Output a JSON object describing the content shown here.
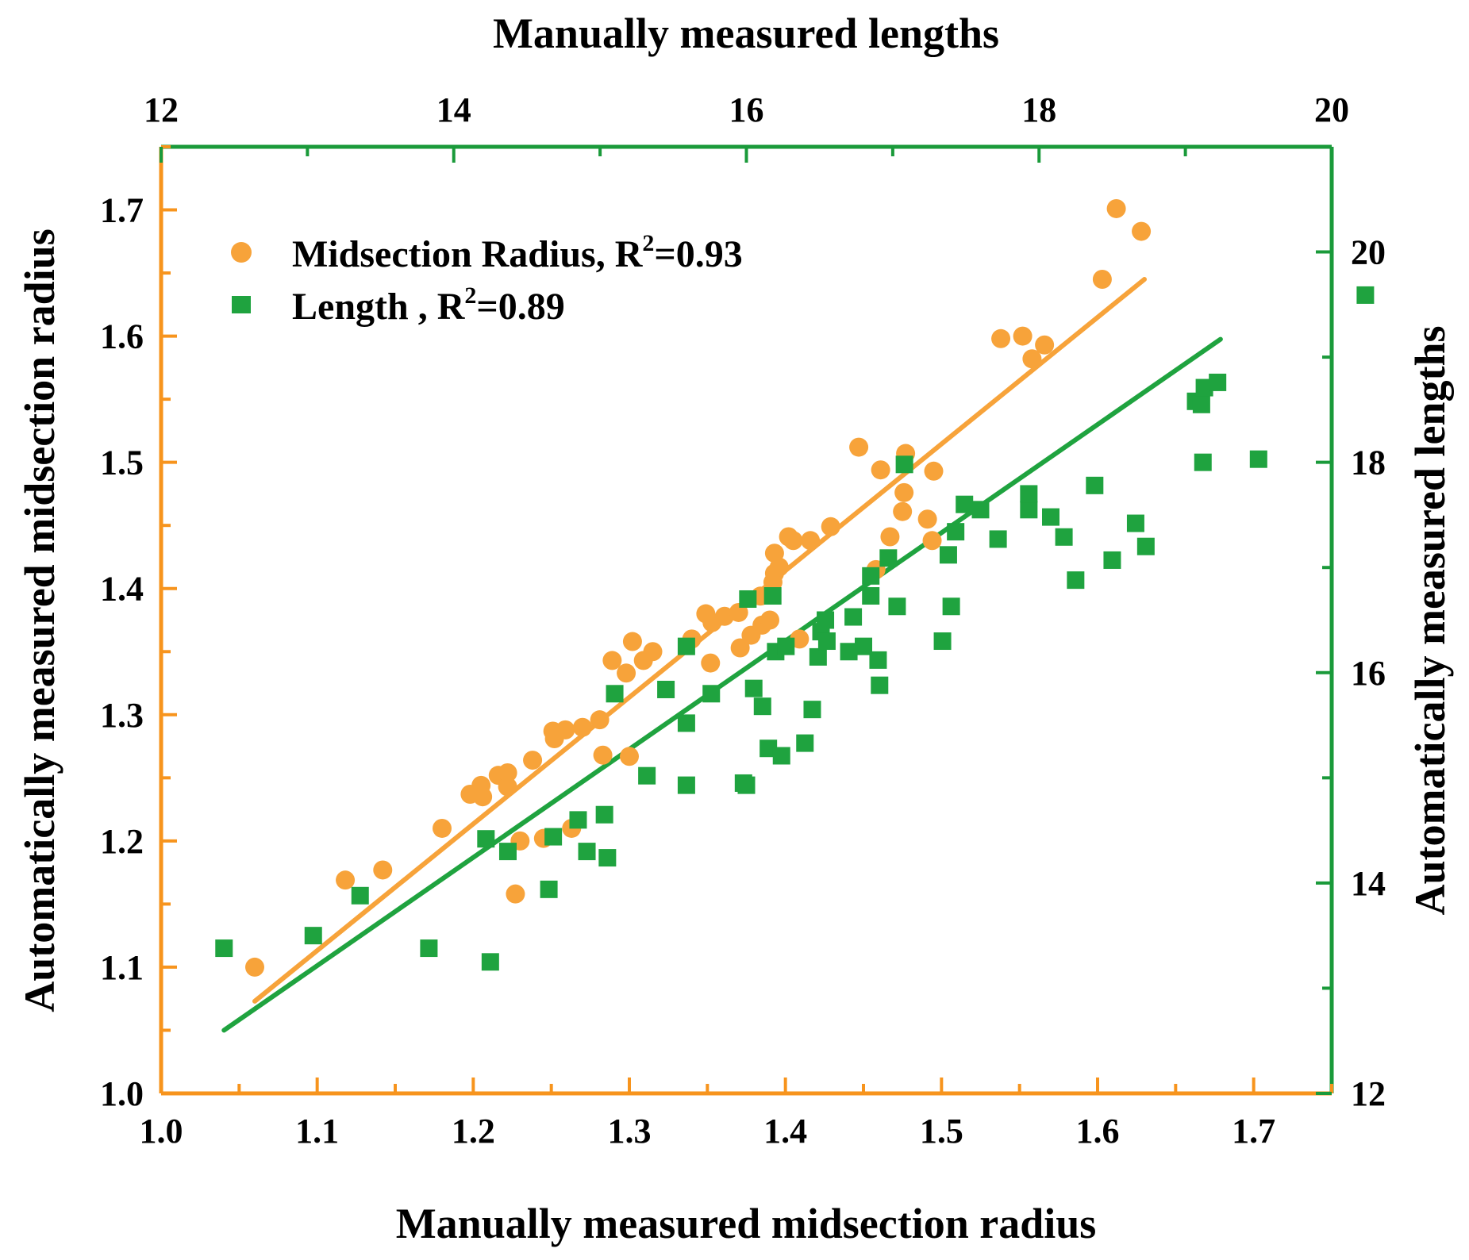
{
  "chart_data": {
    "type": "scatter",
    "title": "",
    "bottom_axis": {
      "label": "Manually measured midsection radius",
      "range": [
        1.0,
        1.75
      ],
      "ticks": [
        "1.0",
        "1.1",
        "1.2",
        "1.3",
        "1.4",
        "1.5",
        "1.6",
        "1.7"
      ],
      "color": "#F7941D"
    },
    "left_axis": {
      "label": "Automatically measured midsection radius",
      "range": [
        1.0,
        1.75
      ],
      "ticks": [
        "1.0",
        "1.1",
        "1.2",
        "1.3",
        "1.4",
        "1.5",
        "1.6",
        "1.7"
      ],
      "color": "#F7941D"
    },
    "top_axis": {
      "label": "Manually measured lengths",
      "range": [
        12,
        20
      ],
      "ticks": [
        "12",
        "14",
        "16",
        "18",
        "20"
      ],
      "color": "#1A9A3A"
    },
    "right_axis": {
      "label": "Automatically measured lengths",
      "range": [
        12,
        21
      ],
      "ticks": [
        "12",
        "14",
        "16",
        "18",
        "20"
      ],
      "color": "#1A9A3A"
    },
    "legend": {
      "position": "top-left",
      "entries": [
        {
          "text": "Midsection Radius, R",
          "sup": "2",
          "tail": "=0.93",
          "marker": "circle",
          "color": "#F7A33A"
        },
        {
          "text": "Length , R",
          "sup": "2",
          "tail": "=0.89",
          "marker": "square",
          "color": "#1FA33F"
        }
      ]
    },
    "series": [
      {
        "name": "Midsection Radius",
        "marker": "circle",
        "color": "#F7A33A",
        "axes": "bottom-left",
        "fit_color": "#F7A33A",
        "fit_line": {
          "x": [
            1.06,
            1.63
          ],
          "y": [
            1.073,
            1.645
          ]
        },
        "points": [
          [
            1.06,
            1.1
          ],
          [
            1.118,
            1.169
          ],
          [
            1.142,
            1.177
          ],
          [
            1.18,
            1.21
          ],
          [
            1.198,
            1.237
          ],
          [
            1.205,
            1.244
          ],
          [
            1.206,
            1.235
          ],
          [
            1.216,
            1.252
          ],
          [
            1.222,
            1.254
          ],
          [
            1.222,
            1.243
          ],
          [
            1.227,
            1.158
          ],
          [
            1.23,
            1.2
          ],
          [
            1.238,
            1.264
          ],
          [
            1.245,
            1.202
          ],
          [
            1.251,
            1.287
          ],
          [
            1.252,
            1.281
          ],
          [
            1.259,
            1.288
          ],
          [
            1.263,
            1.21
          ],
          [
            1.27,
            1.29
          ],
          [
            1.281,
            1.296
          ],
          [
            1.283,
            1.268
          ],
          [
            1.289,
            1.343
          ],
          [
            1.298,
            1.333
          ],
          [
            1.3,
            1.267
          ],
          [
            1.302,
            1.358
          ],
          [
            1.309,
            1.343
          ],
          [
            1.315,
            1.35
          ],
          [
            1.34,
            1.36
          ],
          [
            1.349,
            1.38
          ],
          [
            1.352,
            1.341
          ],
          [
            1.353,
            1.373
          ],
          [
            1.361,
            1.378
          ],
          [
            1.37,
            1.381
          ],
          [
            1.371,
            1.353
          ],
          [
            1.378,
            1.363
          ],
          [
            1.384,
            1.394
          ],
          [
            1.385,
            1.371
          ],
          [
            1.39,
            1.375
          ],
          [
            1.392,
            1.405
          ],
          [
            1.393,
            1.412
          ],
          [
            1.393,
            1.428
          ],
          [
            1.396,
            1.417
          ],
          [
            1.402,
            1.441
          ],
          [
            1.405,
            1.438
          ],
          [
            1.409,
            1.36
          ],
          [
            1.416,
            1.438
          ],
          [
            1.429,
            1.449
          ],
          [
            1.447,
            1.512
          ],
          [
            1.458,
            1.415
          ],
          [
            1.461,
            1.494
          ],
          [
            1.467,
            1.441
          ],
          [
            1.475,
            1.461
          ],
          [
            1.476,
            1.476
          ],
          [
            1.477,
            1.507
          ],
          [
            1.491,
            1.455
          ],
          [
            1.494,
            1.438
          ],
          [
            1.495,
            1.493
          ],
          [
            1.538,
            1.598
          ],
          [
            1.552,
            1.6
          ],
          [
            1.558,
            1.582
          ],
          [
            1.566,
            1.593
          ],
          [
            1.603,
            1.645
          ],
          [
            1.612,
            1.701
          ],
          [
            1.628,
            1.683
          ]
        ]
      },
      {
        "name": "Length",
        "marker": "square",
        "color": "#1FA33F",
        "axes": "top-right",
        "fit_color": "#1FA33F",
        "fit_line": {
          "x": [
            12.43,
            19.24
          ],
          "y": [
            12.6,
            19.17
          ]
        },
        "points": [
          [
            12.43,
            13.38
          ],
          [
            13.04,
            13.5
          ],
          [
            13.36,
            13.88
          ],
          [
            13.83,
            13.38
          ],
          [
            14.25,
            13.25
          ],
          [
            14.22,
            14.42
          ],
          [
            14.37,
            14.3
          ],
          [
            14.65,
            13.94
          ],
          [
            14.68,
            14.44
          ],
          [
            14.85,
            14.6
          ],
          [
            14.91,
            14.3
          ],
          [
            15.03,
            14.65
          ],
          [
            15.05,
            14.24
          ],
          [
            15.1,
            15.8
          ],
          [
            15.32,
            15.02
          ],
          [
            15.45,
            15.84
          ],
          [
            15.59,
            16.25
          ],
          [
            15.59,
            15.52
          ],
          [
            15.59,
            14.93
          ],
          [
            15.76,
            15.8
          ],
          [
            16.01,
            16.7
          ],
          [
            15.98,
            14.95
          ],
          [
            16.0,
            14.93
          ],
          [
            16.05,
            15.85
          ],
          [
            16.11,
            15.68
          ],
          [
            16.15,
            15.28
          ],
          [
            16.18,
            16.73
          ],
          [
            16.2,
            16.2
          ],
          [
            16.24,
            15.21
          ],
          [
            16.27,
            16.25
          ],
          [
            16.4,
            15.33
          ],
          [
            16.45,
            15.65
          ],
          [
            16.49,
            16.15
          ],
          [
            16.51,
            16.39
          ],
          [
            16.54,
            16.5
          ],
          [
            16.55,
            16.3
          ],
          [
            16.7,
            16.2
          ],
          [
            16.73,
            16.53
          ],
          [
            16.8,
            16.25
          ],
          [
            16.85,
            16.73
          ],
          [
            16.85,
            16.92
          ],
          [
            16.9,
            16.12
          ],
          [
            16.91,
            15.88
          ],
          [
            16.97,
            17.09
          ],
          [
            17.03,
            16.63
          ],
          [
            17.08,
            17.98
          ],
          [
            17.34,
            16.3
          ],
          [
            17.38,
            17.12
          ],
          [
            17.4,
            16.63
          ],
          [
            17.43,
            17.34
          ],
          [
            17.49,
            17.6
          ],
          [
            17.6,
            17.55
          ],
          [
            17.72,
            17.27
          ],
          [
            17.93,
            17.55
          ],
          [
            17.93,
            17.7
          ],
          [
            18.08,
            17.48
          ],
          [
            18.17,
            17.29
          ],
          [
            18.25,
            16.88
          ],
          [
            18.38,
            17.78
          ],
          [
            18.5,
            17.07
          ],
          [
            18.66,
            17.42
          ],
          [
            18.73,
            17.2
          ],
          [
            19.07,
            18.58
          ],
          [
            19.11,
            18.55
          ],
          [
            19.13,
            18.71
          ],
          [
            19.12,
            18.0
          ],
          [
            19.22,
            18.76
          ],
          [
            19.5,
            18.03
          ],
          [
            20.23,
            19.59
          ]
        ]
      }
    ]
  }
}
